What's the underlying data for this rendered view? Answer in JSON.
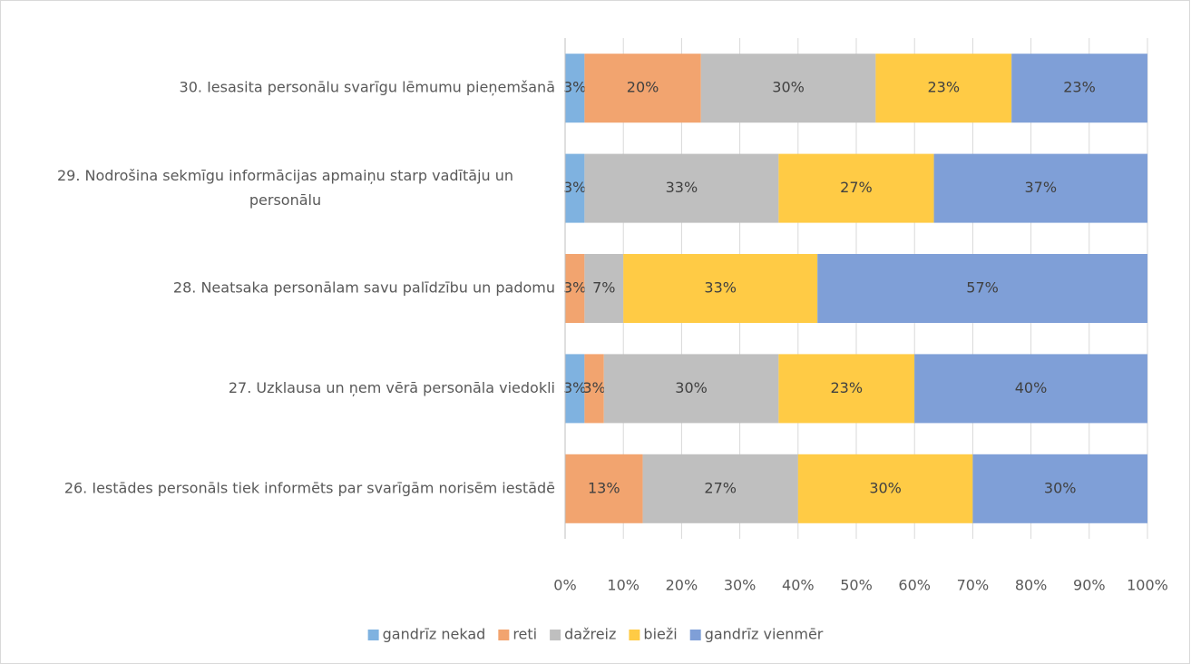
{
  "chart_data": {
    "type": "stacked_barh",
    "categories": [
      "30. Iesasita personālu svarīgu lēmumu pieņemšanā",
      "29. Nodrošina sekmīgu informācijas apmaiņu starp vadītāju un personālu",
      "28. Neatsaka personālam savu palīdzību un padomu",
      "27. Uzklausa un ņem vērā personāla viedokli",
      "26. Iestādes personāls tiek informēts par svarīgām norisēm iestādē"
    ],
    "series": [
      {
        "name": "gandrīz nekad",
        "color": "#7fb2e0",
        "values": [
          3.33,
          3.33,
          0,
          3.33,
          0
        ],
        "value_labels": [
          "3%",
          "3%",
          null,
          "3%",
          null
        ]
      },
      {
        "name": "reti",
        "color": "#f2a46f",
        "values": [
          20,
          0,
          3.33,
          3.33,
          13.33
        ],
        "value_labels": [
          "20%",
          null,
          "3%",
          "3%",
          "13%"
        ]
      },
      {
        "name": "dažreiz",
        "color": "#bfbfbf",
        "values": [
          30,
          33.33,
          6.67,
          30,
          26.67
        ],
        "value_labels": [
          "30%",
          "33%",
          "7%",
          "30%",
          "27%"
        ]
      },
      {
        "name": "bieži",
        "color": "#ffcb45",
        "values": [
          23.33,
          26.67,
          33.33,
          23.33,
          30
        ],
        "value_labels": [
          "23%",
          "27%",
          "33%",
          "23%",
          "30%"
        ]
      },
      {
        "name": "gandrīz vienmēr",
        "color": "#7f9fd7",
        "values": [
          23.33,
          36.67,
          56.67,
          40,
          30
        ],
        "value_labels": [
          "23%",
          "37%",
          "57%",
          "40%",
          "30%"
        ]
      }
    ],
    "xlim": [
      0,
      100
    ],
    "xticks": [
      {
        "value": 0,
        "label": "0%"
      },
      {
        "value": 10,
        "label": "10%"
      },
      {
        "value": 20,
        "label": "20%"
      },
      {
        "value": 30,
        "label": "30%"
      },
      {
        "value": 40,
        "label": "40%"
      },
      {
        "value": 50,
        "label": "50%"
      },
      {
        "value": 60,
        "label": "60%"
      },
      {
        "value": 70,
        "label": "70%"
      },
      {
        "value": 80,
        "label": "80%"
      },
      {
        "value": 90,
        "label": "90%"
      },
      {
        "value": 100,
        "label": "100%"
      }
    ],
    "grid": true,
    "legend": "bottom"
  }
}
